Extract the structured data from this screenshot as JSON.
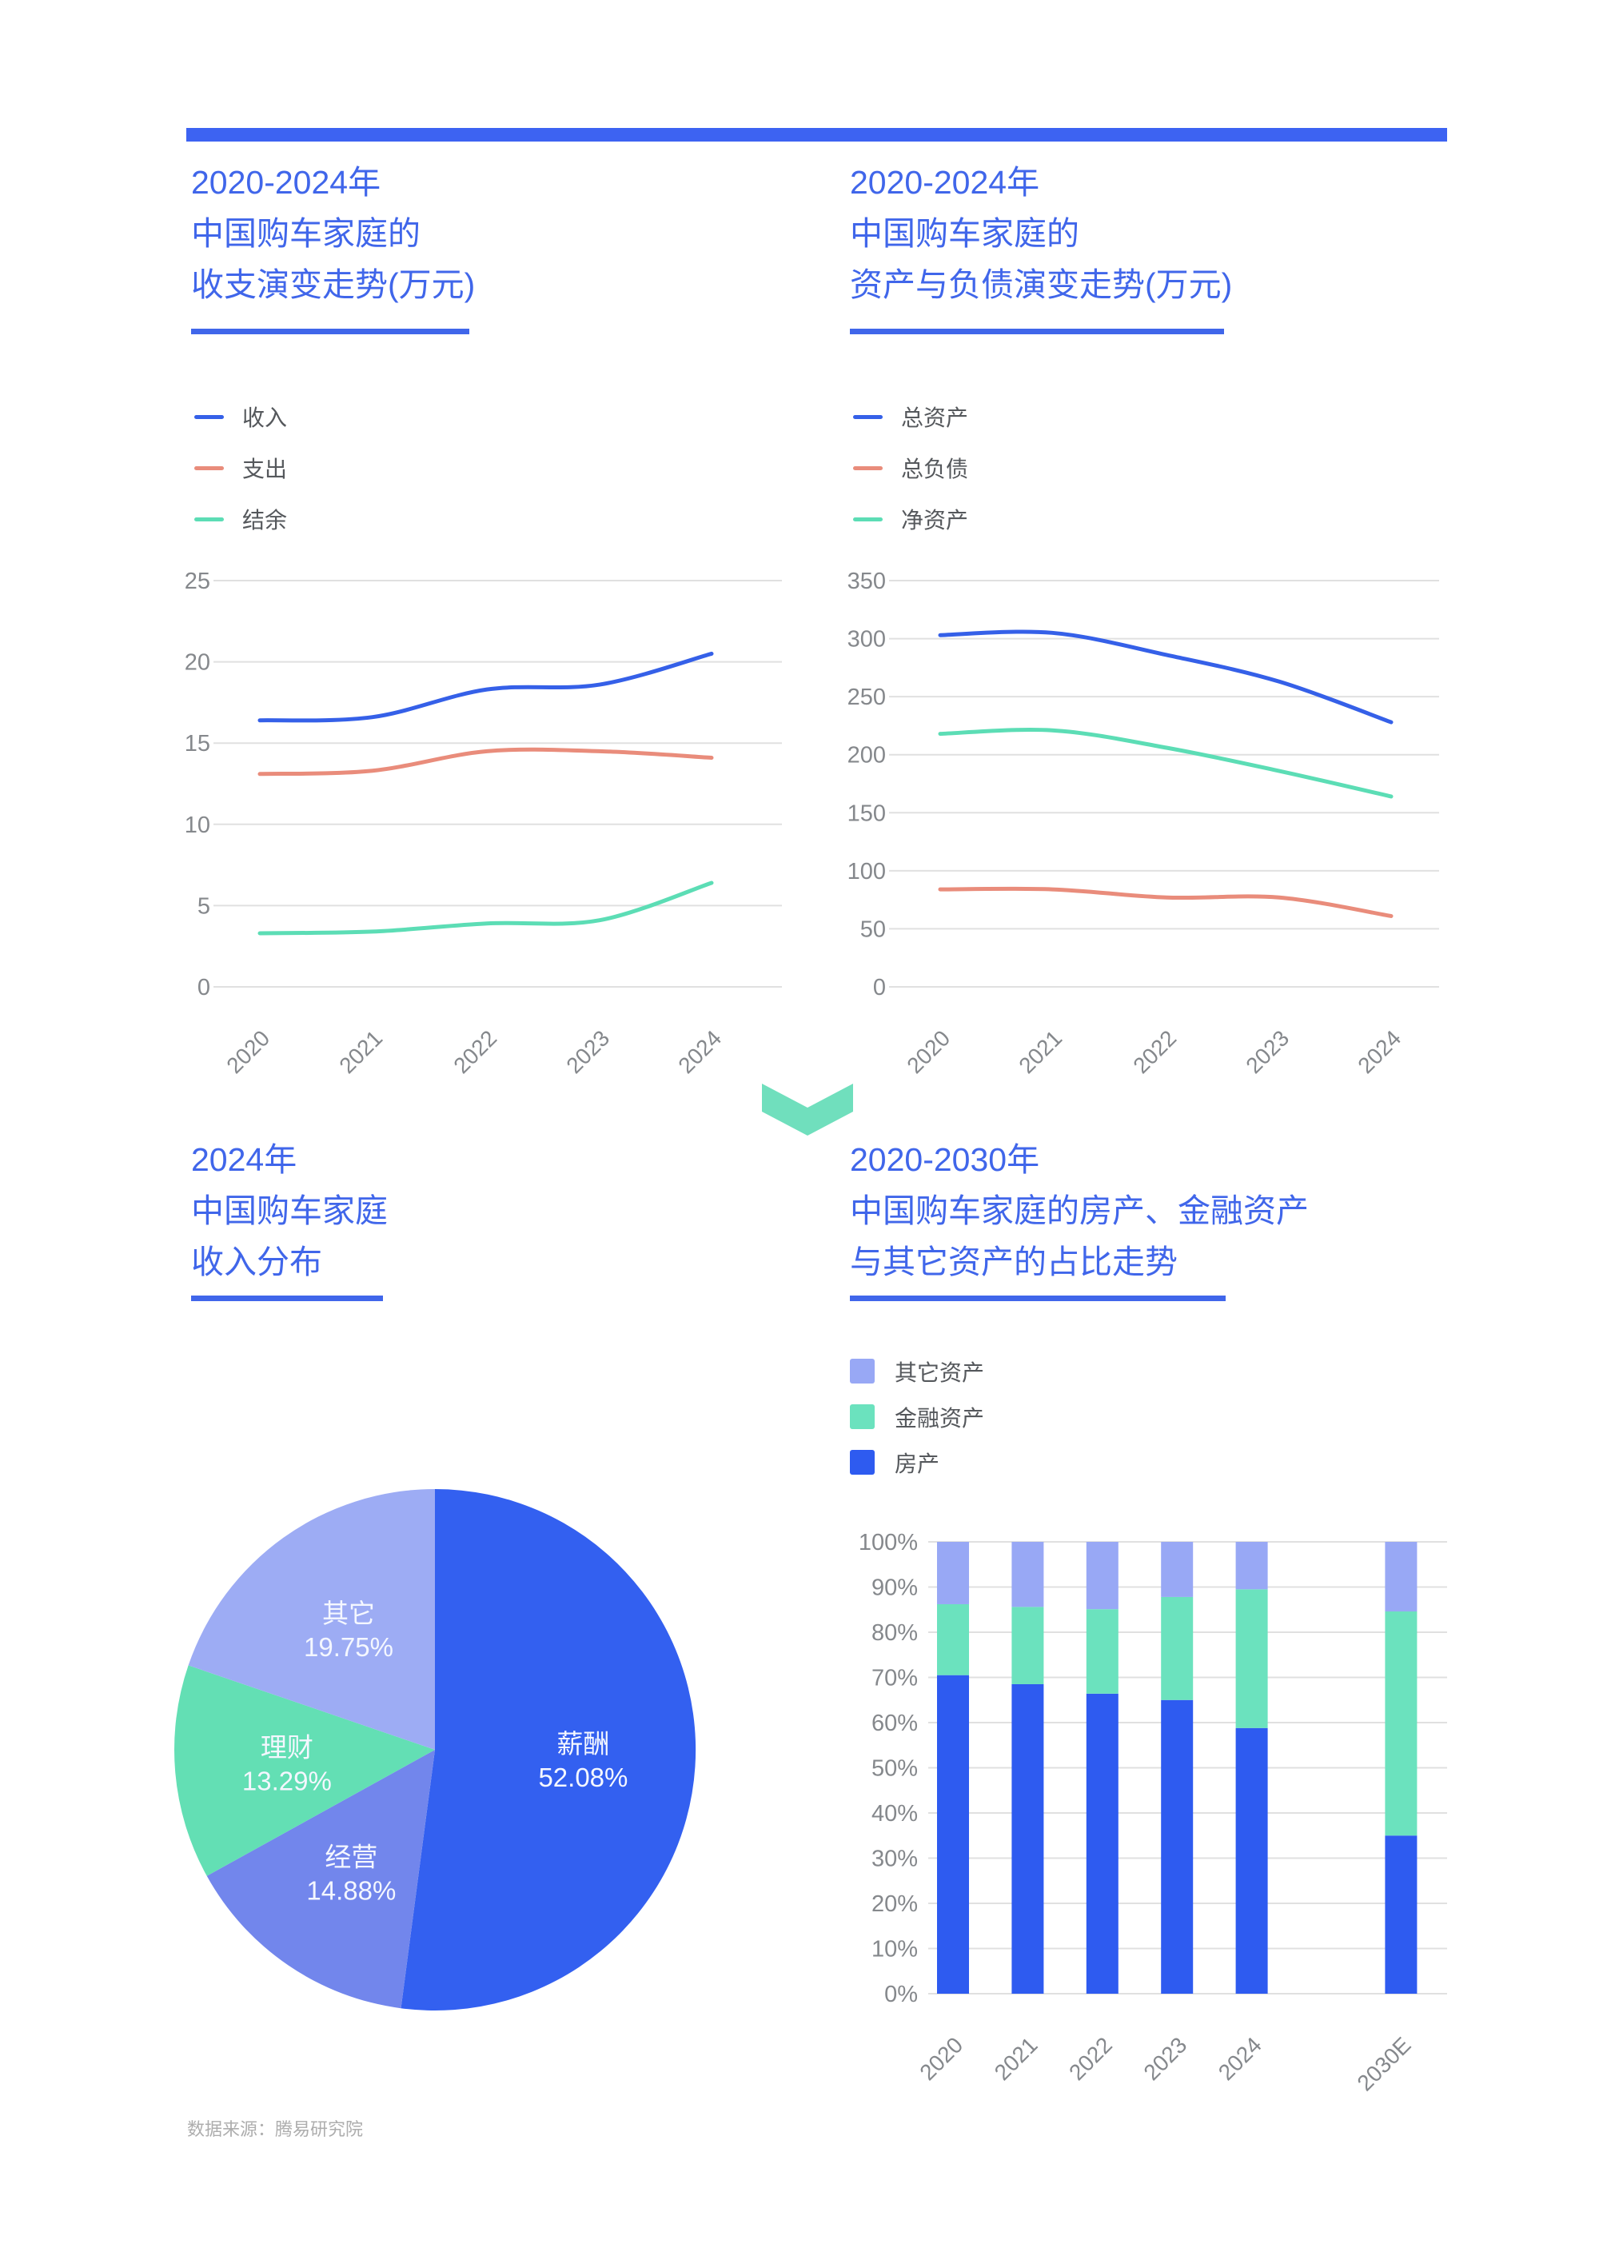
{
  "page": {
    "source_note": "数据来源：腾易研究院"
  },
  "colors": {
    "accent_blue": "#3d63f2",
    "title_blue": "#4066ea",
    "chevron_mint": "#70dfbd",
    "grid_gray": "#e0e0e0",
    "tick_gray": "#85888c",
    "legend_text": "#55585c"
  },
  "charts": {
    "income_expense": {
      "type": "line",
      "title_lines": [
        "2020-2024年",
        "中国购车家庭的",
        "收支演变走势(万元)"
      ],
      "categories": [
        "2020",
        "2021",
        "2022",
        "2023",
        "2024"
      ],
      "ylim": [
        0,
        25
      ],
      "yticks": [
        25,
        20,
        15,
        10,
        5,
        0
      ],
      "grid": true,
      "legend_position": "top-left",
      "series": [
        {
          "name": "收入",
          "color": "#3560e8",
          "values": [
            16.4,
            16.6,
            18.3,
            18.6,
            20.5
          ]
        },
        {
          "name": "支出",
          "color": "#e98c7b",
          "values": [
            13.1,
            13.3,
            14.5,
            14.5,
            14.1
          ]
        },
        {
          "name": "结余",
          "color": "#5cddb5",
          "values": [
            3.3,
            3.4,
            3.9,
            4.1,
            6.4
          ]
        }
      ]
    },
    "assets_liabilities": {
      "type": "line",
      "title_lines": [
        "2020-2024年",
        "中国购车家庭的",
        "资产与负债演变走势(万元)"
      ],
      "categories": [
        "2020",
        "2021",
        "2022",
        "2023",
        "2024"
      ],
      "ylim": [
        0,
        350
      ],
      "yticks": [
        350,
        300,
        250,
        200,
        150,
        100,
        50,
        0
      ],
      "grid": true,
      "legend_position": "top-left",
      "series": [
        {
          "name": "总资产",
          "color": "#3560e8",
          "values": [
            303,
            305,
            286,
            263,
            228
          ]
        },
        {
          "name": "总负债",
          "color": "#e98c7b",
          "values": [
            84,
            84,
            77,
            77,
            61
          ]
        },
        {
          "name": "净资产",
          "color": "#5cddb5",
          "values": [
            218,
            221,
            206,
            186,
            164
          ]
        }
      ]
    },
    "income_distribution": {
      "type": "pie",
      "title_lines": [
        "2024年",
        "中国购车家庭",
        "收入分布"
      ],
      "start_angle_deg": 0,
      "direction": "clockwise",
      "slices": [
        {
          "name": "薪酬",
          "pct": 52.08,
          "pct_label": "52.08%",
          "color": "#3360f0"
        },
        {
          "name": "经营",
          "pct": 14.88,
          "pct_label": "14.88%",
          "color": "#7286ec"
        },
        {
          "name": "理财",
          "pct": 13.29,
          "pct_label": "13.29%",
          "color": "#63dfb4"
        },
        {
          "name": "其它",
          "pct": 19.75,
          "pct_label": "19.75%",
          "color": "#9dacf4"
        }
      ]
    },
    "asset_mix": {
      "type": "stacked-bar",
      "title_lines": [
        "2020-2030年",
        "中国购车家庭的房产、金融资产",
        "与其它资产的占比走势"
      ],
      "categories": [
        "2020",
        "2021",
        "2022",
        "2023",
        "2024",
        "2030E"
      ],
      "slot_index": [
        0,
        1,
        2,
        3,
        4,
        6
      ],
      "ylim_pct": [
        0,
        100
      ],
      "yticks_pct": [
        "100%",
        "90%",
        "80%",
        "70%",
        "60%",
        "50%",
        "40%",
        "30%",
        "20%",
        "10%",
        "0%"
      ],
      "grid": true,
      "legend": [
        {
          "name": "其它资产",
          "color": "#98a8f5"
        },
        {
          "name": "金融资产",
          "color": "#6be2be"
        },
        {
          "name": "房产",
          "color": "#2e5bf0"
        }
      ],
      "series": [
        {
          "name": "房产",
          "color": "#2e5bf0",
          "values": [
            70.5,
            68.5,
            66.4,
            65.0,
            58.8,
            35.0
          ]
        },
        {
          "name": "金融资产",
          "color": "#6be2be",
          "values": [
            15.7,
            17.1,
            18.7,
            22.8,
            30.7,
            49.6
          ]
        },
        {
          "name": "其它资产",
          "color": "#98a8f5",
          "values": [
            13.8,
            14.4,
            14.9,
            12.2,
            10.5,
            15.4
          ]
        }
      ]
    }
  }
}
